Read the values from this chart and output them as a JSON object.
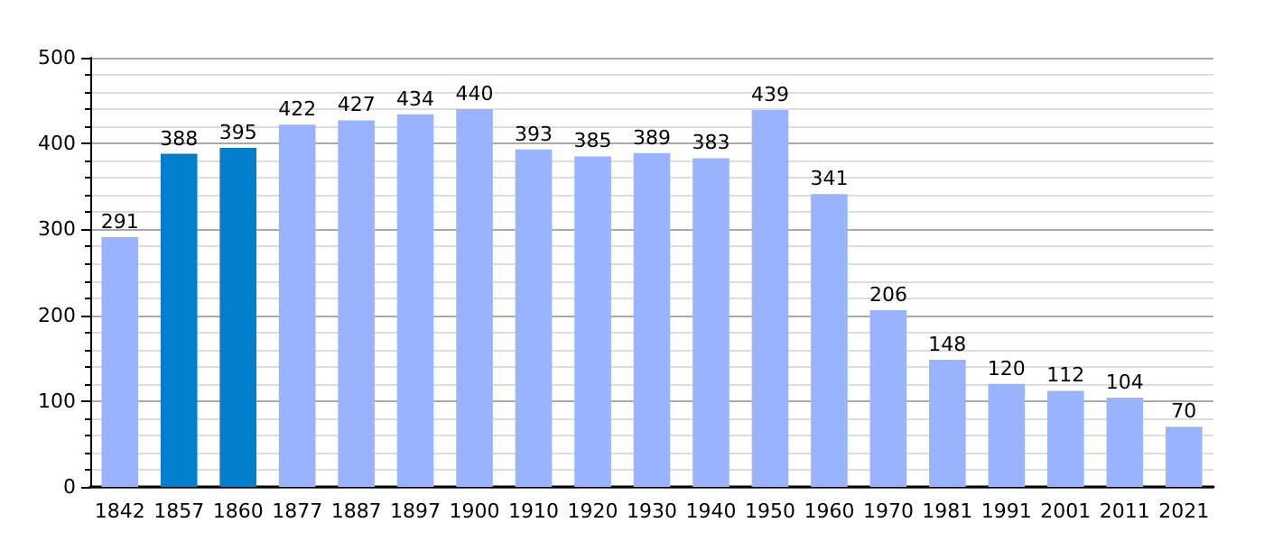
{
  "chart_data": {
    "type": "bar",
    "categories": [
      "1842",
      "1857",
      "1860",
      "1877",
      "1887",
      "1897",
      "1900",
      "1910",
      "1920",
      "1930",
      "1940",
      "1950",
      "1960",
      "1970",
      "1981",
      "1991",
      "2001",
      "2011",
      "2021"
    ],
    "values": [
      291,
      388,
      395,
      422,
      427,
      434,
      440,
      393,
      385,
      389,
      383,
      439,
      341,
      206,
      148,
      120,
      112,
      104,
      70
    ],
    "colors": [
      "#99b3ff",
      "#0080cc",
      "#0080cc",
      "#99b3ff",
      "#99b3ff",
      "#99b3ff",
      "#99b3ff",
      "#99b3ff",
      "#99b3ff",
      "#99b3ff",
      "#99b3ff",
      "#99b3ff",
      "#99b3ff",
      "#99b3ff",
      "#99b3ff",
      "#99b3ff",
      "#99b3ff",
      "#99b3ff",
      "#99b3ff"
    ],
    "ylim": [
      0,
      500
    ],
    "yticks": [
      0,
      100,
      200,
      300,
      400,
      500
    ],
    "grid": true,
    "data_labels": true
  }
}
